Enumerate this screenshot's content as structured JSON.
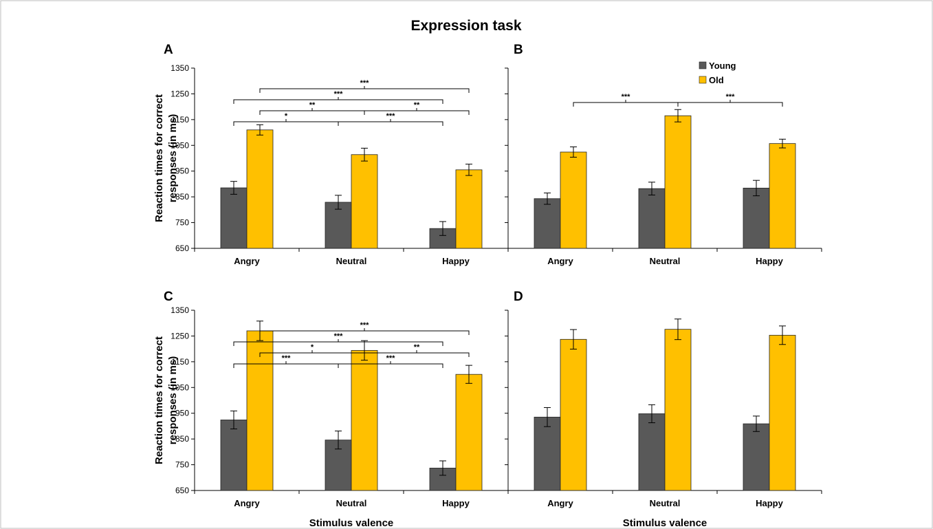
{
  "figure": {
    "title": "Expression task",
    "colors": {
      "young": "#595959",
      "old": "#ffc000",
      "frame": "#bdbdbd"
    }
  },
  "chart_data": [
    {
      "type": "bar",
      "panel": "A",
      "categories": [
        "Angry",
        "Neutral",
        "Happy"
      ],
      "series": [
        {
          "name": "Young",
          "values": [
            885,
            829,
            727
          ],
          "errors": [
            25,
            27,
            27
          ]
        },
        {
          "name": "Old",
          "values": [
            1110,
            1014,
            955
          ],
          "errors": [
            20,
            25,
            22
          ]
        }
      ],
      "ylabel": "Reaction times for correct responses (in ms)",
      "xlabel": "",
      "ylim": [
        650,
        1350
      ],
      "yticks": [
        650,
        750,
        850,
        950,
        1050,
        1150,
        1250,
        1350
      ],
      "legend": "none",
      "significance": [
        {
          "from": 0,
          "to": 1,
          "label": "*",
          "level": 0
        },
        {
          "from": 1,
          "to": 2,
          "label": "***",
          "level": 0
        },
        {
          "from": 0.5,
          "to": 1.5,
          "label": "**",
          "level": 1
        },
        {
          "from": 1.5,
          "to": 2.5,
          "label": "**",
          "level": 1
        },
        {
          "from": 0,
          "to": 2,
          "label": "***",
          "level": 2
        },
        {
          "from": 0.5,
          "to": 2.5,
          "label": "***",
          "level": 3
        }
      ]
    },
    {
      "type": "bar",
      "panel": "B",
      "categories": [
        "Angry",
        "Neutral",
        "Happy"
      ],
      "series": [
        {
          "name": "Young",
          "values": [
            843,
            882,
            884
          ],
          "errors": [
            22,
            25,
            30
          ]
        },
        {
          "name": "Old",
          "values": [
            1024,
            1165,
            1057
          ],
          "errors": [
            20,
            24,
            17
          ]
        }
      ],
      "ylabel": "",
      "xlabel": "",
      "ylim": [
        650,
        1350
      ],
      "legend": "top-right",
      "significance": [
        {
          "from": 0.5,
          "to": 1.5,
          "label": "***",
          "level": 0
        },
        {
          "from": 1.5,
          "to": 2.5,
          "label": "***",
          "level": 0
        }
      ]
    },
    {
      "type": "bar",
      "panel": "C",
      "categories": [
        "Angry",
        "Neutral",
        "Happy"
      ],
      "series": [
        {
          "name": "Young",
          "values": [
            924,
            846,
            737
          ],
          "errors": [
            35,
            35,
            28
          ]
        },
        {
          "name": "Old",
          "values": [
            1270,
            1194,
            1101
          ],
          "errors": [
            38,
            38,
            35
          ]
        }
      ],
      "ylabel": "Reaction times for correct responses (in ms)",
      "xlabel": "Stimulus valence",
      "ylim": [
        650,
        1350
      ],
      "yticks": [
        650,
        750,
        850,
        950,
        1050,
        1150,
        1250,
        1350
      ],
      "legend": "none",
      "significance": [
        {
          "from": 0,
          "to": 1,
          "label": "***",
          "level": 0
        },
        {
          "from": 1,
          "to": 2,
          "label": "***",
          "level": 0
        },
        {
          "from": 0.5,
          "to": 1.5,
          "label": "*",
          "level": 1
        },
        {
          "from": 1.5,
          "to": 2.5,
          "label": "**",
          "level": 1
        },
        {
          "from": 0,
          "to": 2,
          "label": "***",
          "level": 2
        },
        {
          "from": 0.5,
          "to": 2.5,
          "label": "***",
          "level": 3
        }
      ]
    },
    {
      "type": "bar",
      "panel": "D",
      "categories": [
        "Angry",
        "Neutral",
        "Happy"
      ],
      "series": [
        {
          "name": "Young",
          "values": [
            935,
            948,
            909
          ],
          "errors": [
            37,
            35,
            30
          ]
        },
        {
          "name": "Old",
          "values": [
            1237,
            1276,
            1253
          ],
          "errors": [
            38,
            40,
            36
          ]
        }
      ],
      "ylabel": "",
      "xlabel": "Stimulus valence",
      "ylim": [
        650,
        1350
      ],
      "legend": "none",
      "significance": []
    }
  ]
}
